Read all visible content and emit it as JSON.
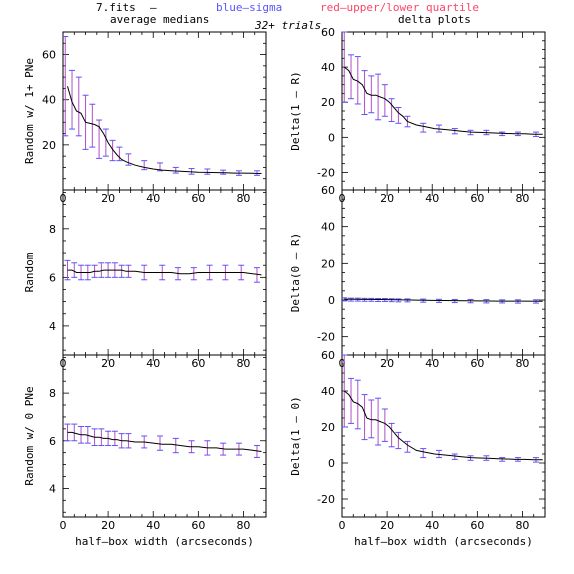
{
  "header": {
    "file": "7.fits",
    "dash": "–",
    "blue": "blue–sigma",
    "red": "red–upper/lower quartile",
    "trials": "32+ trials",
    "left_title": "average medians",
    "right_title": "delta plots",
    "colors": {
      "blue": "#5555ff",
      "red": "#ff4466",
      "line": "#000000",
      "purple": "#b04fc8"
    }
  },
  "chart_data": [
    {
      "type": "line",
      "id": "p1",
      "ylabel": "Random w/ 1+ PNe",
      "xlabel": "",
      "xlim": [
        0,
        90
      ],
      "ylim": [
        0,
        70
      ],
      "xticks": [
        0,
        20,
        40,
        60,
        80
      ],
      "yticks": [
        20,
        40,
        60
      ],
      "x": [
        2,
        4,
        6,
        8,
        10,
        12,
        14,
        16,
        18,
        20,
        22,
        24,
        26,
        28,
        32,
        36,
        40,
        44,
        48,
        52,
        56,
        60,
        64,
        68,
        72,
        76,
        80,
        84,
        88
      ],
      "y": [
        46,
        39,
        35,
        34,
        30,
        29.5,
        29,
        28,
        25,
        21,
        18,
        15.5,
        13.5,
        12.5,
        11,
        10,
        9.3,
        8.8,
        8.5,
        8.3,
        8.1,
        7.9,
        7.8,
        7.7,
        7.6,
        7.5,
        7.5,
        7.4,
        7.3
      ],
      "errors": [
        {
          "x": 1,
          "lo": 24,
          "hi": 68
        },
        {
          "x": 4,
          "lo": 27,
          "hi": 53
        },
        {
          "x": 7,
          "lo": 24,
          "hi": 50
        },
        {
          "x": 10,
          "lo": 18,
          "hi": 42
        },
        {
          "x": 13,
          "lo": 19,
          "hi": 38
        },
        {
          "x": 16,
          "lo": 14,
          "hi": 31
        },
        {
          "x": 19,
          "lo": 15,
          "hi": 27
        },
        {
          "x": 22,
          "lo": 13,
          "hi": 22
        },
        {
          "x": 25,
          "lo": 13,
          "hi": 19
        },
        {
          "x": 29,
          "lo": 11,
          "hi": 16
        },
        {
          "x": 36,
          "lo": 9,
          "hi": 13
        },
        {
          "x": 43,
          "lo": 8.5,
          "hi": 12
        },
        {
          "x": 50,
          "lo": 7.5,
          "hi": 10
        },
        {
          "x": 57,
          "lo": 7,
          "hi": 9.5
        },
        {
          "x": 64,
          "lo": 7,
          "hi": 9.3
        },
        {
          "x": 71,
          "lo": 7,
          "hi": 8.8
        },
        {
          "x": 78,
          "lo": 6.5,
          "hi": 8.5
        },
        {
          "x": 86,
          "lo": 6.5,
          "hi": 8.5
        }
      ]
    },
    {
      "type": "line",
      "id": "p2",
      "ylabel": "Delta(1 – R)",
      "xlabel": "",
      "xlim": [
        0,
        90
      ],
      "ylim": [
        -30,
        60
      ],
      "xticks": [
        0,
        20,
        40,
        60,
        80
      ],
      "yticks": [
        -20,
        0,
        20,
        40,
        60
      ],
      "x": [
        1,
        3,
        5,
        7,
        9,
        11,
        13,
        15,
        17,
        19,
        21,
        23,
        25,
        27,
        29,
        33,
        37,
        41,
        45,
        49,
        53,
        57,
        61,
        65,
        69,
        73,
        77,
        81,
        85,
        89
      ],
      "y": [
        40,
        38,
        33,
        32,
        30,
        25,
        24,
        24,
        23,
        22,
        20,
        17,
        14,
        12,
        9,
        7,
        6,
        5,
        4.5,
        4,
        3.5,
        3,
        2.8,
        2.6,
        2.4,
        2.2,
        2,
        2,
        1.8,
        1.8
      ],
      "errors": [
        {
          "x": 1,
          "lo": 20,
          "hi": 60
        },
        {
          "x": 4,
          "lo": 22,
          "hi": 47
        },
        {
          "x": 7,
          "lo": 19,
          "hi": 46
        },
        {
          "x": 10,
          "lo": 13,
          "hi": 38
        },
        {
          "x": 13,
          "lo": 14,
          "hi": 35
        },
        {
          "x": 16,
          "lo": 10,
          "hi": 36
        },
        {
          "x": 19,
          "lo": 12,
          "hi": 30
        },
        {
          "x": 22,
          "lo": 9,
          "hi": 22
        },
        {
          "x": 25,
          "lo": 8,
          "hi": 17
        },
        {
          "x": 29,
          "lo": 6,
          "hi": 12
        },
        {
          "x": 36,
          "lo": 3,
          "hi": 8
        },
        {
          "x": 43,
          "lo": 3,
          "hi": 7
        },
        {
          "x": 50,
          "lo": 2,
          "hi": 5
        },
        {
          "x": 57,
          "lo": 1.5,
          "hi": 4
        },
        {
          "x": 64,
          "lo": 1.5,
          "hi": 4
        },
        {
          "x": 71,
          "lo": 1,
          "hi": 3
        },
        {
          "x": 78,
          "lo": 1,
          "hi": 3
        },
        {
          "x": 86,
          "lo": 0.5,
          "hi": 3
        }
      ]
    },
    {
      "type": "line",
      "id": "p3",
      "ylabel": "Random",
      "xlabel": "",
      "xlim": [
        0,
        90
      ],
      "ylim": [
        2.8,
        9.6
      ],
      "xticks": [
        0,
        20,
        40,
        60,
        80
      ],
      "yticks": [
        4,
        6,
        8
      ],
      "x": [
        2,
        4,
        6,
        8,
        10,
        12,
        14,
        16,
        18,
        20,
        22,
        24,
        26,
        28,
        32,
        36,
        40,
        44,
        48,
        52,
        56,
        60,
        64,
        68,
        72,
        76,
        80,
        84,
        88
      ],
      "y": [
        6.3,
        6.3,
        6.2,
        6.2,
        6.2,
        6.2,
        6.25,
        6.25,
        6.3,
        6.3,
        6.3,
        6.3,
        6.3,
        6.25,
        6.25,
        6.2,
        6.2,
        6.2,
        6.2,
        6.15,
        6.15,
        6.2,
        6.2,
        6.2,
        6.2,
        6.2,
        6.2,
        6.15,
        6.1
      ],
      "errors": [
        {
          "x": 2,
          "lo": 5.9,
          "hi": 6.7
        },
        {
          "x": 5,
          "lo": 6.0,
          "hi": 6.6
        },
        {
          "x": 8,
          "lo": 5.9,
          "hi": 6.5
        },
        {
          "x": 11,
          "lo": 5.9,
          "hi": 6.5
        },
        {
          "x": 14,
          "lo": 6.0,
          "hi": 6.5
        },
        {
          "x": 17,
          "lo": 6.0,
          "hi": 6.6
        },
        {
          "x": 20,
          "lo": 6.0,
          "hi": 6.6
        },
        {
          "x": 23,
          "lo": 6.0,
          "hi": 6.6
        },
        {
          "x": 26,
          "lo": 6.0,
          "hi": 6.5
        },
        {
          "x": 29,
          "lo": 6.0,
          "hi": 6.5
        },
        {
          "x": 36,
          "lo": 5.9,
          "hi": 6.5
        },
        {
          "x": 44,
          "lo": 5.9,
          "hi": 6.5
        },
        {
          "x": 51,
          "lo": 5.9,
          "hi": 6.4
        },
        {
          "x": 58,
          "lo": 5.9,
          "hi": 6.4
        },
        {
          "x": 65,
          "lo": 5.9,
          "hi": 6.5
        },
        {
          "x": 72,
          "lo": 5.9,
          "hi": 6.5
        },
        {
          "x": 79,
          "lo": 5.9,
          "hi": 6.5
        },
        {
          "x": 86,
          "lo": 5.8,
          "hi": 6.4
        }
      ]
    },
    {
      "type": "line",
      "id": "p4",
      "ylabel": "Delta(0 – R)",
      "xlabel": "",
      "xlim": [
        0,
        90
      ],
      "ylim": [
        -30,
        60
      ],
      "xticks": [
        0,
        20,
        40,
        60,
        80
      ],
      "yticks": [
        -20,
        0,
        20,
        40,
        60
      ],
      "x": [
        1,
        10,
        20,
        30,
        40,
        50,
        60,
        70,
        80,
        89
      ],
      "y": [
        0.5,
        0.3,
        0.2,
        0,
        -0.2,
        -0.3,
        -0.5,
        -0.6,
        -0.6,
        -0.7
      ],
      "errors": [
        {
          "x": 1,
          "lo": -0.5,
          "hi": 1.2
        },
        {
          "x": 4,
          "lo": -0.6,
          "hi": 1.0
        },
        {
          "x": 7,
          "lo": -0.6,
          "hi": 1.0
        },
        {
          "x": 10,
          "lo": -0.7,
          "hi": 0.9
        },
        {
          "x": 13,
          "lo": -0.7,
          "hi": 0.9
        },
        {
          "x": 16,
          "lo": -0.8,
          "hi": 0.8
        },
        {
          "x": 19,
          "lo": -0.8,
          "hi": 0.8
        },
        {
          "x": 22,
          "lo": -0.9,
          "hi": 0.7
        },
        {
          "x": 25,
          "lo": -1.0,
          "hi": 0.6
        },
        {
          "x": 29,
          "lo": -1.0,
          "hi": 0.6
        },
        {
          "x": 36,
          "lo": -1.2,
          "hi": 0.5
        },
        {
          "x": 43,
          "lo": -1.3,
          "hi": 0.4
        },
        {
          "x": 50,
          "lo": -1.4,
          "hi": 0.3
        },
        {
          "x": 57,
          "lo": -1.5,
          "hi": 0.3
        },
        {
          "x": 64,
          "lo": -1.6,
          "hi": 0.2
        },
        {
          "x": 71,
          "lo": -1.6,
          "hi": 0.1
        },
        {
          "x": 78,
          "lo": -1.7,
          "hi": 0.1
        },
        {
          "x": 86,
          "lo": -1.7,
          "hi": 0.1
        }
      ]
    },
    {
      "type": "line",
      "id": "p5",
      "ylabel": "Random w/ 0 PNe",
      "xlabel": "half–box width (arcseconds)",
      "xlim": [
        0,
        90
      ],
      "ylim": [
        2.8,
        9.6
      ],
      "xticks": [
        0,
        20,
        40,
        60,
        80
      ],
      "yticks": [
        4,
        6,
        8
      ],
      "x": [
        2,
        4,
        6,
        8,
        10,
        12,
        14,
        16,
        18,
        20,
        22,
        24,
        26,
        28,
        32,
        36,
        40,
        44,
        48,
        52,
        56,
        60,
        64,
        68,
        72,
        76,
        80,
        84,
        88
      ],
      "y": [
        6.35,
        6.35,
        6.3,
        6.25,
        6.25,
        6.2,
        6.15,
        6.15,
        6.1,
        6.1,
        6.05,
        6.05,
        6.0,
        6.0,
        5.95,
        5.95,
        5.9,
        5.85,
        5.85,
        5.8,
        5.75,
        5.75,
        5.7,
        5.7,
        5.65,
        5.65,
        5.65,
        5.6,
        5.55
      ],
      "errors": [
        {
          "x": 2,
          "lo": 6.0,
          "hi": 6.7
        },
        {
          "x": 5,
          "lo": 6.0,
          "hi": 6.7
        },
        {
          "x": 8,
          "lo": 5.9,
          "hi": 6.6
        },
        {
          "x": 11,
          "lo": 5.9,
          "hi": 6.6
        },
        {
          "x": 14,
          "lo": 5.8,
          "hi": 6.5
        },
        {
          "x": 17,
          "lo": 5.8,
          "hi": 6.5
        },
        {
          "x": 20,
          "lo": 5.8,
          "hi": 6.4
        },
        {
          "x": 23,
          "lo": 5.8,
          "hi": 6.4
        },
        {
          "x": 26,
          "lo": 5.7,
          "hi": 6.3
        },
        {
          "x": 29,
          "lo": 5.7,
          "hi": 6.3
        },
        {
          "x": 36,
          "lo": 5.7,
          "hi": 6.2
        },
        {
          "x": 43,
          "lo": 5.6,
          "hi": 6.2
        },
        {
          "x": 50,
          "lo": 5.5,
          "hi": 6.1
        },
        {
          "x": 57,
          "lo": 5.5,
          "hi": 6.0
        },
        {
          "x": 64,
          "lo": 5.4,
          "hi": 6.0
        },
        {
          "x": 71,
          "lo": 5.4,
          "hi": 5.9
        },
        {
          "x": 78,
          "lo": 5.4,
          "hi": 5.9
        },
        {
          "x": 86,
          "lo": 5.3,
          "hi": 5.8
        }
      ]
    },
    {
      "type": "line",
      "id": "p6",
      "ylabel": "Delta(1 – 0)",
      "xlabel": "half–box width (arcseconds)",
      "xlim": [
        0,
        90
      ],
      "ylim": [
        -30,
        60
      ],
      "xticks": [
        0,
        20,
        40,
        60,
        80
      ],
      "yticks": [
        -20,
        0,
        20,
        40,
        60
      ],
      "x": [
        1,
        3,
        5,
        7,
        9,
        11,
        13,
        15,
        17,
        19,
        21,
        23,
        25,
        27,
        29,
        33,
        37,
        41,
        45,
        49,
        53,
        57,
        61,
        65,
        69,
        73,
        77,
        81,
        85,
        89
      ],
      "y": [
        40,
        38,
        34,
        33,
        31,
        25,
        24,
        24,
        23,
        22,
        20,
        17,
        14,
        12,
        10,
        7,
        6,
        5,
        4.5,
        4,
        3.5,
        3,
        2.8,
        2.6,
        2.4,
        2.2,
        2,
        2,
        1.8,
        1.8
      ],
      "errors": [
        {
          "x": 1,
          "lo": 20,
          "hi": 60
        },
        {
          "x": 4,
          "lo": 22,
          "hi": 47
        },
        {
          "x": 7,
          "lo": 19,
          "hi": 46
        },
        {
          "x": 10,
          "lo": 13,
          "hi": 38
        },
        {
          "x": 13,
          "lo": 14,
          "hi": 35
        },
        {
          "x": 16,
          "lo": 10,
          "hi": 36
        },
        {
          "x": 19,
          "lo": 12,
          "hi": 30
        },
        {
          "x": 22,
          "lo": 9,
          "hi": 22
        },
        {
          "x": 25,
          "lo": 8,
          "hi": 17
        },
        {
          "x": 29,
          "lo": 6,
          "hi": 12
        },
        {
          "x": 36,
          "lo": 3,
          "hi": 8
        },
        {
          "x": 43,
          "lo": 3,
          "hi": 7
        },
        {
          "x": 50,
          "lo": 2,
          "hi": 5
        },
        {
          "x": 57,
          "lo": 1.5,
          "hi": 4
        },
        {
          "x": 64,
          "lo": 1.5,
          "hi": 4
        },
        {
          "x": 71,
          "lo": 1,
          "hi": 3
        },
        {
          "x": 78,
          "lo": 1,
          "hi": 3
        },
        {
          "x": 86,
          "lo": 0.5,
          "hi": 3
        }
      ]
    }
  ]
}
